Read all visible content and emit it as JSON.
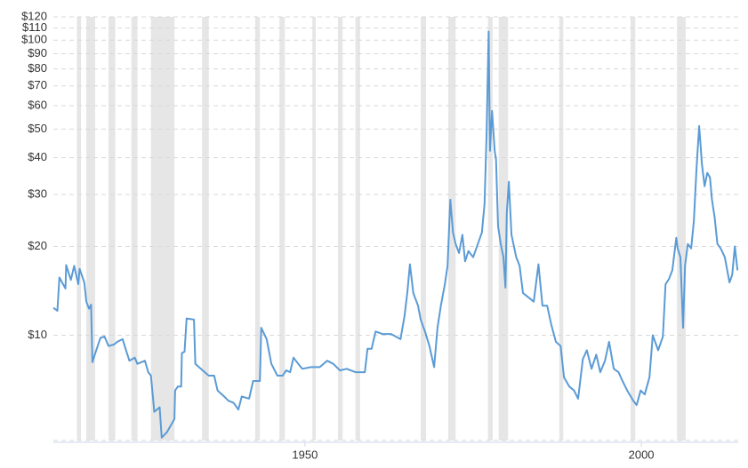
{
  "chart_data": {
    "type": "line",
    "log_y": true,
    "grid": true,
    "color": "#5b9bd5",
    "recession_color": "#e6e6e6",
    "xlim": [
      1912.6,
      2014.4
    ],
    "xticks": [
      1950,
      2000
    ],
    "ylim": [
      4.4,
      120
    ],
    "yticks": [
      {
        "value": 10,
        "label": "$10"
      },
      {
        "value": 20,
        "label": "$20"
      },
      {
        "value": 30,
        "label": "$30"
      },
      {
        "value": 40,
        "label": "$40"
      },
      {
        "value": 50,
        "label": "$50"
      },
      {
        "value": 60,
        "label": "$60"
      },
      {
        "value": 70,
        "label": "$70"
      },
      {
        "value": 80,
        "label": "$80"
      },
      {
        "value": 90,
        "label": "$90"
      },
      {
        "value": 100,
        "label": "$100"
      },
      {
        "value": 110,
        "label": "$110"
      },
      {
        "value": 120,
        "label": "$120"
      }
    ],
    "recessions": [
      [
        1916.1,
        1916.7
      ],
      [
        1917.5,
        1918.8
      ],
      [
        1920.8,
        1921.8
      ],
      [
        1924.2,
        1925.1
      ],
      [
        1927.1,
        1930.6
      ],
      [
        1934.7,
        1935.7
      ],
      [
        1942.6,
        1943.3
      ],
      [
        1946.2,
        1947.0
      ],
      [
        1951.1,
        1951.6
      ],
      [
        1954.9,
        1955.6
      ],
      [
        1957.5,
        1958.2
      ],
      [
        1967.2,
        1968.0
      ],
      [
        1971.3,
        1972.4
      ],
      [
        1977.2,
        1977.9
      ],
      [
        1978.8,
        1980.2
      ],
      [
        1987.8,
        1988.4
      ],
      [
        1998.4,
        1999.1
      ],
      [
        2005.3,
        2006.6
      ]
    ],
    "x": [
      1912.6,
      1913.2,
      1913.5,
      1914.4,
      1914.5,
      1915.2,
      1915.7,
      1916.3,
      1916.5,
      1917.2,
      1917.5,
      1917.9,
      1918.2,
      1918.4,
      1918.9,
      1919.6,
      1920.2,
      1920.8,
      1921.6,
      1922.1,
      1922.9,
      1923.4,
      1923.9,
      1924.7,
      1925.1,
      1926.2,
      1926.7,
      1927.1,
      1927.6,
      1928.4,
      1928.7,
      1929.5,
      1930.6,
      1930.7,
      1931.1,
      1931.6,
      1931.7,
      1932.1,
      1932.4,
      1933.5,
      1933.7,
      1934.8,
      1935.7,
      1936.5,
      1937.0,
      1938.0,
      1938.6,
      1939.4,
      1940.1,
      1940.6,
      1941.7,
      1942.3,
      1943.3,
      1943.5,
      1944.3,
      1945.0,
      1945.9,
      1946.7,
      1947.2,
      1947.8,
      1948.3,
      1949.0,
      1949.6,
      1950.9,
      1952.2,
      1953.3,
      1954.2,
      1955.2,
      1956.2,
      1957.5,
      1958.9,
      1959.3,
      1959.9,
      1960.5,
      1961.5,
      1962.8,
      1964.2,
      1964.8,
      1965.2,
      1965.6,
      1966.1,
      1966.8,
      1967.2,
      1967.9,
      1968.5,
      1969.2,
      1969.7,
      1970.2,
      1970.8,
      1971.2,
      1971.6,
      1972.0,
      1972.4,
      1972.9,
      1973.4,
      1973.8,
      1974.3,
      1975.0,
      1975.7,
      1976.3,
      1976.7,
      1977.0,
      1977.3,
      1977.5,
      1977.8,
      1978.2,
      1978.4,
      1978.7,
      1979.1,
      1979.5,
      1979.8,
      1980.0,
      1980.3,
      1980.7,
      1981.4,
      1981.9,
      1982.4,
      1983.1,
      1984.0,
      1984.7,
      1985.3,
      1986.0,
      1986.6,
      1987.3,
      1988.0,
      1988.5,
      1989.3,
      1990.0,
      1990.6,
      1991.3,
      1991.9,
      1992.6,
      1993.3,
      1993.9,
      1994.6,
      1995.2,
      1995.9,
      1996.6,
      1997.2,
      1997.9,
      1998.8,
      1999.3,
      1999.9,
      2000.5,
      2001.2,
      2001.7,
      2002.5,
      2003.2,
      2003.6,
      2004.1,
      2004.6,
      2005.2,
      2005.4,
      2005.8,
      2006.2,
      2006.5,
      2006.9,
      2007.4,
      2007.8,
      2008.2,
      2008.6,
      2009.0,
      2009.4,
      2009.8,
      2010.2,
      2010.5,
      2010.9,
      2011.3,
      2011.8,
      2012.4,
      2013.1,
      2013.5,
      2013.9,
      2014.3
    ],
    "values": [
      12.4,
      12.1,
      15.7,
      14.4,
      17.3,
      15.4,
      17.2,
      14.9,
      16.8,
      15.1,
      13.0,
      12.3,
      12.7,
      8.1,
      8.8,
      9.8,
      9.9,
      9.2,
      9.3,
      9.5,
      9.7,
      8.9,
      8.2,
      8.4,
      8.0,
      8.2,
      7.5,
      7.3,
      5.5,
      5.7,
      4.5,
      4.7,
      5.2,
      6.5,
      6.7,
      6.7,
      8.7,
      8.8,
      11.4,
      11.3,
      8.0,
      7.6,
      7.3,
      7.3,
      6.5,
      6.2,
      6.0,
      5.9,
      5.6,
      6.2,
      6.1,
      7.0,
      7.0,
      10.6,
      9.7,
      8.0,
      7.3,
      7.3,
      7.6,
      7.5,
      8.4,
      8.0,
      7.7,
      7.8,
      7.8,
      8.2,
      8.0,
      7.6,
      7.7,
      7.5,
      7.5,
      9.0,
      9.0,
      10.3,
      10.1,
      10.1,
      9.7,
      11.6,
      13.9,
      17.4,
      13.9,
      12.6,
      11.3,
      10.2,
      9.2,
      7.8,
      10.6,
      12.6,
      14.9,
      17.2,
      28.8,
      22.3,
      20.4,
      19.0,
      21.9,
      17.8,
      19.3,
      18.4,
      20.4,
      22.3,
      27.9,
      48.5,
      107,
      42.2,
      57.6,
      42.2,
      39.4,
      23.4,
      20.4,
      18.4,
      14.5,
      26.0,
      33.1,
      21.9,
      18.4,
      17.2,
      13.9,
      13.5,
      13.0,
      17.4,
      12.6,
      12.6,
      10.9,
      9.5,
      9.2,
      7.2,
      6.7,
      6.5,
      6.1,
      8.3,
      8.9,
      7.7,
      8.6,
      7.5,
      8.2,
      9.5,
      7.7,
      7.5,
      7.0,
      6.5,
      6.0,
      5.8,
      6.5,
      6.3,
      7.2,
      10.0,
      8.9,
      9.9,
      14.9,
      15.5,
      16.6,
      21.4,
      19.7,
      18.4,
      10.6,
      17.2,
      20.4,
      19.7,
      24.3,
      36.7,
      51.2,
      38.0,
      32.0,
      35.5,
      34.3,
      28.8,
      25.1,
      20.4,
      19.7,
      18.4,
      15.1,
      16.0,
      20.0,
      16.6
    ]
  }
}
